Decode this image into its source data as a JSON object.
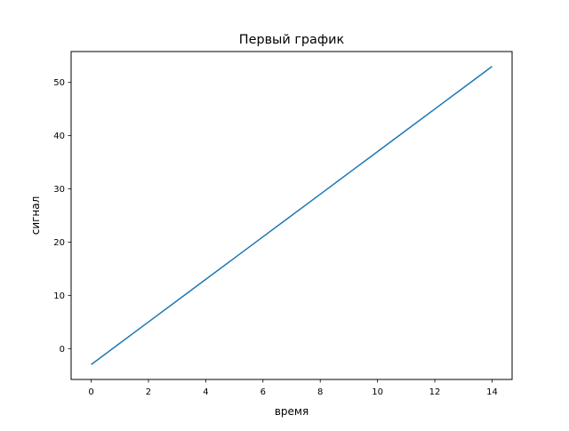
{
  "chart_data": {
    "type": "line",
    "title": "Первый график",
    "xlabel": "время",
    "ylabel": "сигнал",
    "xlim": [
      -0.7,
      14.7
    ],
    "ylim": [
      -5.8,
      55.8
    ],
    "xticks": [
      0,
      2,
      4,
      6,
      8,
      10,
      12,
      14
    ],
    "yticks": [
      0,
      10,
      20,
      30,
      40,
      50
    ],
    "grid": false,
    "series": [
      {
        "color": "#1f77b4",
        "x": [
          0,
          1,
          2,
          3,
          4,
          5,
          6,
          7,
          8,
          9,
          10,
          11,
          12,
          13,
          14
        ],
        "y": [
          -3,
          1,
          5,
          9,
          13,
          17,
          21,
          25,
          29,
          33,
          37,
          41,
          45,
          49,
          53
        ]
      }
    ]
  }
}
